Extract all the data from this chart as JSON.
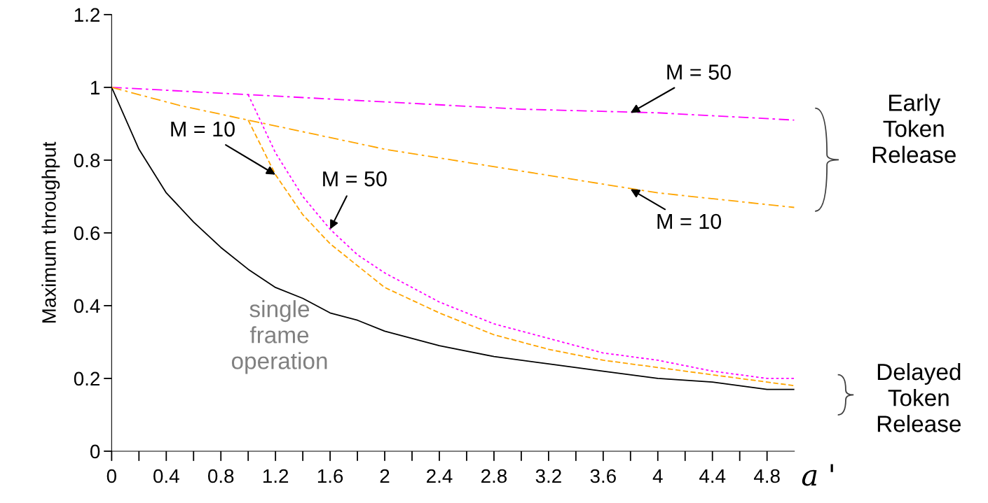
{
  "chart_data": {
    "type": "line",
    "xlabel": "a '",
    "ylabel": "Maximum throughput",
    "xlim": [
      0,
      5
    ],
    "ylim": [
      0,
      1.2
    ],
    "xticks": [
      0,
      {
        "value": 0.2,
        "label": null
      },
      0.4,
      {
        "value": 0.6,
        "label": null
      },
      0.8,
      {
        "value": 1.0,
        "label": null
      },
      1.2,
      {
        "value": 1.4,
        "label": null
      },
      1.6,
      {
        "value": 1.8,
        "label": null
      },
      2,
      {
        "value": 2.2,
        "label": null
      },
      2.4,
      {
        "value": 2.6,
        "label": null
      },
      2.8,
      {
        "value": 3.0,
        "label": null
      },
      3.2,
      {
        "value": 3.4,
        "label": null
      },
      3.6,
      {
        "value": 3.8,
        "label": null
      },
      4,
      {
        "value": 4.2,
        "label": null
      },
      4.4,
      {
        "value": 4.6,
        "label": null
      },
      4.8
    ],
    "yticks": [
      0,
      0.2,
      0.4,
      0.6,
      0.8,
      1,
      1.2
    ],
    "grid": false,
    "legend": false,
    "marker": "none",
    "series": [
      {
        "color": "#000000",
        "line_style": "solid",
        "x": [
          0,
          0.2,
          0.4,
          0.6,
          0.8,
          1,
          1.2,
          1.4,
          1.6,
          1.8,
          2,
          2.4,
          2.8,
          3.2,
          3.6,
          4,
          4.4,
          4.8,
          5
        ],
        "values": [
          1,
          0.83,
          0.71,
          0.63,
          0.56,
          0.5,
          0.45,
          0.42,
          0.38,
          0.36,
          0.33,
          0.29,
          0.26,
          0.24,
          0.22,
          0.2,
          0.19,
          0.17,
          0.17
        ]
      },
      {
        "color": "#ff00ff",
        "line_style": "dashdot",
        "x": [
          0,
          1,
          2,
          3,
          4,
          5
        ],
        "values": [
          1,
          0.98,
          0.96,
          0.94,
          0.93,
          0.91
        ]
      },
      {
        "color": "#ffa500",
        "line_style": "dashdot",
        "x": [
          0,
          0.5,
          1,
          1.5,
          2,
          2.5,
          3,
          3.5,
          4,
          4.5,
          5
        ],
        "values": [
          1,
          0.95,
          0.91,
          0.87,
          0.83,
          0.8,
          0.77,
          0.74,
          0.71,
          0.69,
          0.67
        ]
      },
      {
        "color": "#ffa500",
        "line_style": "dashed",
        "x": [
          1,
          1.2,
          1.4,
          1.6,
          1.8,
          2,
          2.4,
          2.8,
          3.2,
          3.6,
          4,
          4.4,
          4.8,
          5
        ],
        "values": [
          0.91,
          0.76,
          0.65,
          0.57,
          0.51,
          0.45,
          0.38,
          0.32,
          0.28,
          0.25,
          0.23,
          0.21,
          0.19,
          0.18
        ]
      },
      {
        "color": "#ff00ff",
        "line_style": "dotted",
        "x": [
          1,
          1.2,
          1.4,
          1.6,
          1.8,
          2,
          2.4,
          2.8,
          3.2,
          3.6,
          4,
          4.4,
          4.8,
          5
        ],
        "values": [
          0.98,
          0.82,
          0.7,
          0.61,
          0.54,
          0.49,
          0.41,
          0.35,
          0.31,
          0.27,
          0.25,
          0.22,
          0.2,
          0.2
        ]
      }
    ],
    "annotations": [
      {
        "text": "M = 50",
        "x": 3.8,
        "y": 0.93
      },
      {
        "text": "M = 10",
        "x": 1.2,
        "y": 0.76
      },
      {
        "text": "M = 50",
        "x": 1.6,
        "y": 0.61
      },
      {
        "text": "M = 10",
        "x": 3.8,
        "y": 0.72
      },
      "single\nframe\noperation",
      "Early\nToken\nRelease",
      "Delayed\nToken\nRelease"
    ]
  }
}
